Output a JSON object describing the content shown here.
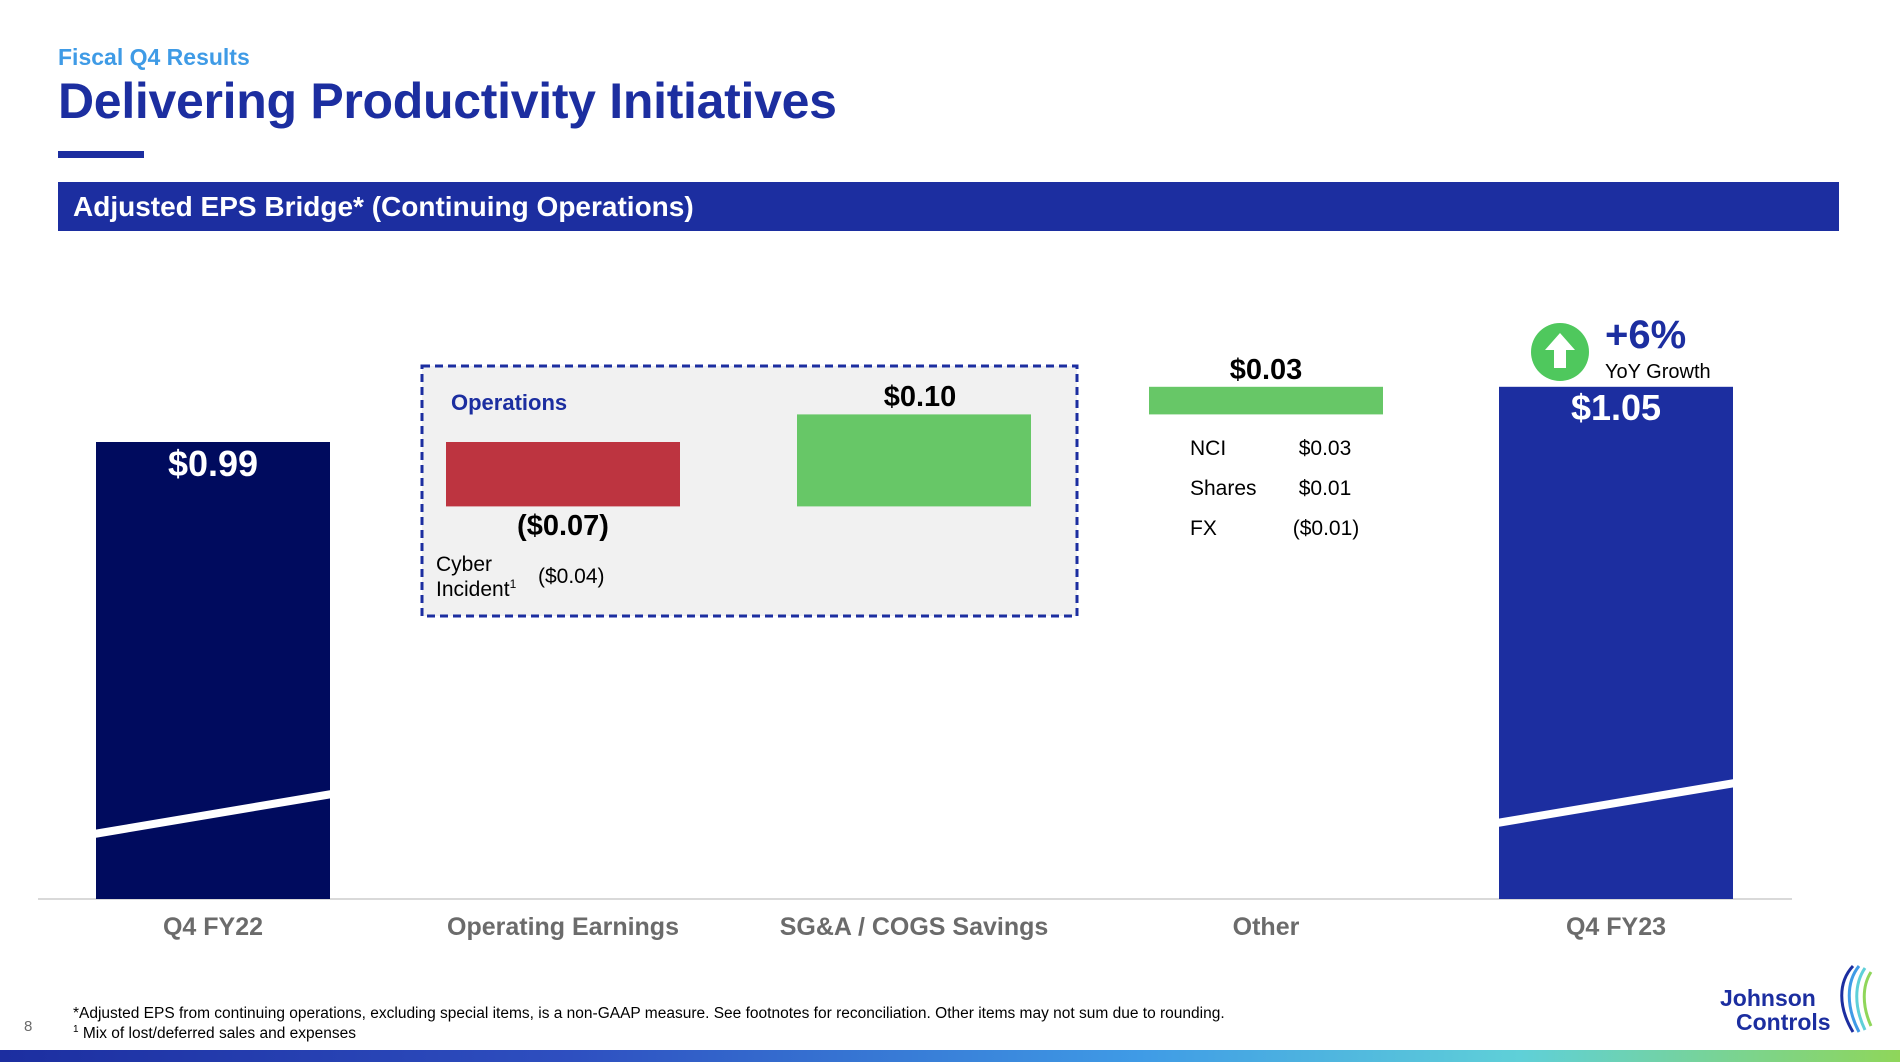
{
  "header": {
    "subtitle": "Fiscal Q4 Results",
    "title": "Delivering Productivity Initiatives",
    "section_banner": "Adjusted EPS Bridge* (Continuing Operations)"
  },
  "colors": {
    "dark_navy": "#000b5e",
    "brand_blue": "#1c2ea0",
    "red": "#bd3440",
    "green": "#67c767",
    "growth_green": "#4fc85d"
  },
  "chart_data": {
    "type": "bar",
    "subtype": "waterfall",
    "title": "Adjusted EPS Bridge* (Continuing Operations)",
    "categories": [
      "Q4 FY22",
      "Operating Earnings",
      "SG&A / COGS Savings",
      "Other",
      "Q4 FY23"
    ],
    "values": [
      0.99,
      -0.07,
      0.1,
      0.03,
      1.05
    ],
    "value_labels": [
      "$0.99",
      "($0.07)",
      "$0.10",
      "$0.03",
      "$1.05"
    ],
    "kinds": [
      "total",
      "delta",
      "delta",
      "delta",
      "total"
    ],
    "unit": "$ per share",
    "ylim": [
      0,
      1.1
    ],
    "axis_break": true,
    "operations_group": {
      "label": "Operations",
      "categories": [
        "Operating Earnings",
        "SG&A / COGS Savings"
      ]
    },
    "operations_detail": {
      "label_line1": "Cyber",
      "label_line2": "Incident",
      "footnote_marker": "1",
      "value": "($0.04)"
    },
    "other_breakdown": [
      {
        "label": "NCI",
        "value": "$0.03"
      },
      {
        "label": "Shares",
        "value": "$0.01"
      },
      {
        "label": "FX",
        "value": "($0.01)"
      }
    ],
    "growth": {
      "value": "+6%",
      "label": "YoY Growth"
    }
  },
  "footnotes": {
    "note1": "*Adjusted EPS from continuing operations, excluding special items, is a non-GAAP measure. See footnotes for reconciliation. Other items may not sum due to rounding.",
    "note2_marker": "1",
    "note2": "Mix of lost/deferred sales and expenses",
    "page_number": "8"
  },
  "logo": {
    "line1": "Johnson",
    "line2": "Controls"
  }
}
